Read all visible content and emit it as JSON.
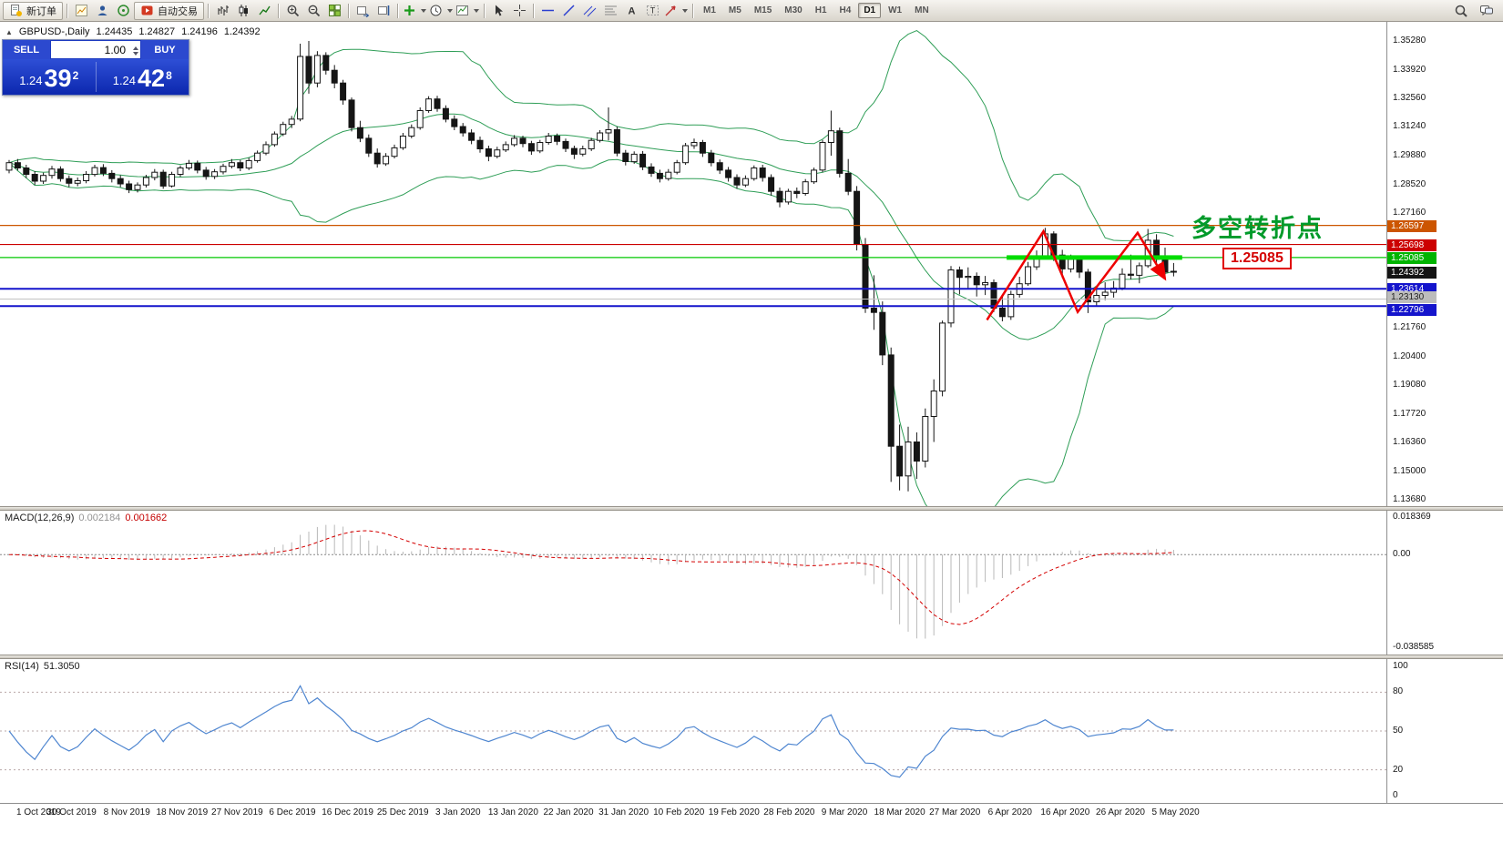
{
  "toolbar": {
    "new_order_label": "新订单",
    "autotrading_label": "自动交易",
    "timeframes": [
      "M1",
      "M5",
      "M15",
      "M30",
      "H1",
      "H4",
      "D1",
      "W1",
      "MN"
    ],
    "active_timeframe": "D1"
  },
  "chart_header": {
    "symbol": "GBPUSD-,Daily",
    "open": "1.24435",
    "high": "1.24827",
    "low": "1.24196",
    "close": "1.24392"
  },
  "trade_panel": {
    "sell_label": "SELL",
    "buy_label": "BUY",
    "volume": "1.00",
    "sell_price_prefix": "1.24",
    "sell_price_big": "39",
    "sell_price_sup": "2",
    "buy_price_prefix": "1.24",
    "buy_price_big": "42",
    "buy_price_sup": "8"
  },
  "annotations": {
    "turning_point_text": "多空转折点",
    "price_flag": "1.25085"
  },
  "chart_data": {
    "type": "candlestick",
    "symbol": "GBPUSD",
    "period": "Daily",
    "ylim": [
      1.1368,
      1.3528
    ],
    "y_ticks": [
      "1.35280",
      "1.33920",
      "1.32560",
      "1.31240",
      "1.29880",
      "1.28520",
      "1.27160",
      "1.21760",
      "1.20400",
      "1.19080",
      "1.17720",
      "1.16360",
      "1.15000",
      "1.13680"
    ],
    "x_labels": [
      "1 Oct 2019",
      "30 Oct 2019",
      "8 Nov 2019",
      "18 Nov 2019",
      "27 Nov 2019",
      "6 Dec 2019",
      "16 Dec 2019",
      "25 Dec 2019",
      "3 Jan 2020",
      "13 Jan 2020",
      "22 Jan 2020",
      "31 Jan 2020",
      "10 Feb 2020",
      "19 Feb 2020",
      "28 Feb 2020",
      "9 Mar 2020",
      "18 Mar 2020",
      "27 Mar 2020",
      "6 Apr 2020",
      "16 Apr 2020",
      "26 Apr 2020",
      "5 May 2020"
    ],
    "bollinger": {
      "period": 20,
      "deviation": 2,
      "color": "#2f9e57"
    },
    "candles": [
      [
        1.292,
        1.2968,
        1.2905,
        1.2955
      ],
      [
        1.2955,
        1.2972,
        1.2918,
        1.293
      ],
      [
        1.293,
        1.2945,
        1.2882,
        1.29
      ],
      [
        1.29,
        1.2915,
        1.285,
        1.2868
      ],
      [
        1.2868,
        1.2908,
        1.2855,
        1.2895
      ],
      [
        1.2895,
        1.294,
        1.288,
        1.2925
      ],
      [
        1.2925,
        1.2938,
        1.2866,
        1.288
      ],
      [
        1.288,
        1.2895,
        1.284,
        1.2858
      ],
      [
        1.2858,
        1.2885,
        1.2844,
        1.287
      ],
      [
        1.287,
        1.2915,
        1.2858,
        1.29
      ],
      [
        1.29,
        1.2945,
        1.289,
        1.2932
      ],
      [
        1.2932,
        1.2948,
        1.2892,
        1.2905
      ],
      [
        1.2905,
        1.292,
        1.2862,
        1.288
      ],
      [
        1.288,
        1.2896,
        1.284,
        1.2855
      ],
      [
        1.2855,
        1.287,
        1.2812,
        1.2828
      ],
      [
        1.2828,
        1.2862,
        1.2815,
        1.285
      ],
      [
        1.285,
        1.2898,
        1.2838,
        1.2885
      ],
      [
        1.2885,
        1.2925,
        1.2872,
        1.291
      ],
      [
        1.291,
        1.2922,
        1.2832,
        1.2845
      ],
      [
        1.2845,
        1.2912,
        1.2838,
        1.29
      ],
      [
        1.29,
        1.2942,
        1.2888,
        1.293
      ],
      [
        1.293,
        1.2968,
        1.292,
        1.2952
      ],
      [
        1.2952,
        1.2965,
        1.2905,
        1.292
      ],
      [
        1.292,
        1.2935,
        1.2875,
        1.289
      ],
      [
        1.289,
        1.2925,
        1.2878,
        1.2912
      ],
      [
        1.2912,
        1.295,
        1.29,
        1.2938
      ],
      [
        1.2938,
        1.2972,
        1.2928,
        1.2955
      ],
      [
        1.2955,
        1.2968,
        1.2915,
        1.293
      ],
      [
        1.293,
        1.2978,
        1.292,
        1.2965
      ],
      [
        1.2965,
        1.3012,
        1.2955,
        1.3
      ],
      [
        1.3,
        1.3055,
        1.299,
        1.304
      ],
      [
        1.304,
        1.3102,
        1.303,
        1.309
      ],
      [
        1.309,
        1.3148,
        1.308,
        1.3135
      ],
      [
        1.3135,
        1.3175,
        1.3118,
        1.316
      ],
      [
        1.316,
        1.3515,
        1.315,
        1.3455
      ],
      [
        1.3455,
        1.3528,
        1.328,
        1.333
      ],
      [
        1.333,
        1.348,
        1.331,
        1.346
      ],
      [
        1.346,
        1.3475,
        1.337,
        1.339
      ],
      [
        1.339,
        1.3415,
        1.3305,
        1.333
      ],
      [
        1.333,
        1.3345,
        1.3228,
        1.325
      ],
      [
        1.325,
        1.3262,
        1.3102,
        1.312
      ],
      [
        1.312,
        1.3152,
        1.3052,
        1.307
      ],
      [
        1.307,
        1.3088,
        1.2982,
        1.3
      ],
      [
        1.3,
        1.3022,
        1.2932,
        1.295
      ],
      [
        1.295,
        1.3,
        1.294,
        1.2985
      ],
      [
        1.2985,
        1.304,
        1.2975,
        1.3025
      ],
      [
        1.3025,
        1.3095,
        1.3015,
        1.308
      ],
      [
        1.308,
        1.3135,
        1.307,
        1.312
      ],
      [
        1.312,
        1.3215,
        1.311,
        1.32
      ],
      [
        1.32,
        1.3268,
        1.319,
        1.3255
      ],
      [
        1.3255,
        1.327,
        1.3195,
        1.321
      ],
      [
        1.321,
        1.3225,
        1.3145,
        1.316
      ],
      [
        1.316,
        1.3178,
        1.3108,
        1.3125
      ],
      [
        1.3125,
        1.3142,
        1.3078,
        1.3095
      ],
      [
        1.3095,
        1.3112,
        1.3042,
        1.306
      ],
      [
        1.306,
        1.3078,
        1.3002,
        1.302
      ],
      [
        1.302,
        1.3035,
        1.2962,
        1.2985
      ],
      [
        1.2985,
        1.303,
        1.2975,
        1.3015
      ],
      [
        1.3015,
        1.3055,
        1.3005,
        1.304
      ],
      [
        1.304,
        1.3085,
        1.303,
        1.307
      ],
      [
        1.307,
        1.3082,
        1.3028,
        1.3045
      ],
      [
        1.3045,
        1.3058,
        1.2992,
        1.301
      ],
      [
        1.301,
        1.3062,
        1.3,
        1.305
      ],
      [
        1.305,
        1.3095,
        1.304,
        1.308
      ],
      [
        1.308,
        1.3092,
        1.3038,
        1.3055
      ],
      [
        1.3055,
        1.3068,
        1.3005,
        1.3022
      ],
      [
        1.3022,
        1.3035,
        1.2972,
        1.2995
      ],
      [
        1.2995,
        1.3035,
        1.2985,
        1.302
      ],
      [
        1.302,
        1.3072,
        1.301,
        1.306
      ],
      [
        1.306,
        1.3108,
        1.305,
        1.3095
      ],
      [
        1.3095,
        1.3215,
        1.306,
        1.311
      ],
      [
        1.311,
        1.3125,
        1.2985,
        1.3
      ],
      [
        1.3,
        1.3015,
        1.2942,
        1.296
      ],
      [
        1.296,
        1.3008,
        1.295,
        1.2995
      ],
      [
        1.2995,
        1.301,
        1.292,
        1.2935
      ],
      [
        1.2935,
        1.2952,
        1.2888,
        1.2905
      ],
      [
        1.2905,
        1.2922,
        1.2862,
        1.288
      ],
      [
        1.288,
        1.2925,
        1.287,
        1.291
      ],
      [
        1.291,
        1.2968,
        1.29,
        1.2955
      ],
      [
        1.2955,
        1.3048,
        1.2945,
        1.3035
      ],
      [
        1.3035,
        1.3068,
        1.302,
        1.305
      ],
      [
        1.305,
        1.3062,
        1.2982,
        1.3
      ],
      [
        1.3,
        1.3015,
        1.2938,
        1.2955
      ],
      [
        1.2955,
        1.297,
        1.2902,
        1.292
      ],
      [
        1.292,
        1.2935,
        1.2866,
        1.2885
      ],
      [
        1.2885,
        1.29,
        1.2832,
        1.285
      ],
      [
        1.285,
        1.2895,
        1.284,
        1.288
      ],
      [
        1.288,
        1.2942,
        1.287,
        1.293
      ],
      [
        1.293,
        1.2945,
        1.2866,
        1.2885
      ],
      [
        1.2885,
        1.29,
        1.28,
        1.282
      ],
      [
        1.282,
        1.2838,
        1.2745,
        1.277
      ],
      [
        1.277,
        1.2832,
        1.2758,
        1.282
      ],
      [
        1.282,
        1.2838,
        1.2788,
        1.281
      ],
      [
        1.281,
        1.2878,
        1.28,
        1.2865
      ],
      [
        1.2865,
        1.2932,
        1.2855,
        1.292
      ],
      [
        1.292,
        1.3062,
        1.291,
        1.305
      ],
      [
        1.305,
        1.32,
        1.2988,
        1.3105
      ],
      [
        1.3105,
        1.312,
        1.2885,
        1.2905
      ],
      [
        1.2905,
        1.2972,
        1.2802,
        1.282
      ],
      [
        1.282,
        1.2845,
        1.2542,
        1.257
      ],
      [
        1.257,
        1.26,
        1.2248,
        1.227
      ],
      [
        1.227,
        1.2425,
        1.2168,
        1.225
      ],
      [
        1.225,
        1.2302,
        1.2002,
        1.205
      ],
      [
        1.205,
        1.2085,
        1.1452,
        1.162
      ],
      [
        1.162,
        1.1722,
        1.1412,
        1.148
      ],
      [
        1.148,
        1.1712,
        1.1408,
        1.164
      ],
      [
        1.164,
        1.1685,
        1.1466,
        1.155
      ],
      [
        1.155,
        1.1798,
        1.152,
        1.176
      ],
      [
        1.176,
        1.1935,
        1.164,
        1.188
      ],
      [
        1.188,
        1.2212,
        1.1855,
        1.22
      ],
      [
        1.22,
        1.2468,
        1.218,
        1.245
      ],
      [
        1.245,
        1.2466,
        1.2335,
        1.2415
      ],
      [
        1.2415,
        1.2462,
        1.236,
        1.242
      ],
      [
        1.242,
        1.2438,
        1.2325,
        1.238
      ],
      [
        1.238,
        1.2422,
        1.2332,
        1.239
      ],
      [
        1.239,
        1.2405,
        1.2252,
        1.227
      ],
      [
        1.227,
        1.2322,
        1.2208,
        1.223
      ],
      [
        1.223,
        1.2352,
        1.2215,
        1.2335
      ],
      [
        1.2335,
        1.2418,
        1.232,
        1.2385
      ],
      [
        1.2385,
        1.2488,
        1.2375,
        1.2465
      ],
      [
        1.2465,
        1.2542,
        1.245,
        1.2515
      ],
      [
        1.2515,
        1.2648,
        1.2505,
        1.262
      ],
      [
        1.262,
        1.2632,
        1.2492,
        1.252
      ],
      [
        1.252,
        1.2545,
        1.2412,
        1.2455
      ],
      [
        1.2455,
        1.2522,
        1.2438,
        1.25
      ],
      [
        1.25,
        1.2518,
        1.2412,
        1.244
      ],
      [
        1.244,
        1.2455,
        1.2247,
        1.23
      ],
      [
        1.23,
        1.2362,
        1.2278,
        1.233
      ],
      [
        1.233,
        1.2392,
        1.2308,
        1.2345
      ],
      [
        1.2345,
        1.2398,
        1.232,
        1.2365
      ],
      [
        1.2365,
        1.2458,
        1.2355,
        1.243
      ],
      [
        1.243,
        1.2522,
        1.2405,
        1.2425
      ],
      [
        1.2425,
        1.2485,
        1.2387,
        1.247
      ],
      [
        1.247,
        1.2643,
        1.246,
        1.259
      ],
      [
        1.259,
        1.2618,
        1.2475,
        1.25
      ],
      [
        1.25,
        1.2555,
        1.2405,
        1.244
      ],
      [
        1.24435,
        1.24827,
        1.24196,
        1.24392
      ]
    ],
    "hlines": [
      {
        "price": 1.26597,
        "color": "#cc5500",
        "width": 1.2
      },
      {
        "price": 1.25698,
        "color": "#cc0000",
        "width": 1.2
      },
      {
        "price": 1.25085,
        "color": "#00c800",
        "width": 1.2
      },
      {
        "price": 1.23614,
        "color": "#1414cc",
        "width": 2
      },
      {
        "price": 1.2313,
        "color": "#c2c2c2",
        "width": 1
      },
      {
        "price": 1.22796,
        "color": "#1414cc",
        "width": 2
      }
    ],
    "price_badges": [
      {
        "text": "1.26597",
        "bg": "#cc5500",
        "fg": "#ffffff",
        "price": 1.26597
      },
      {
        "text": "1.25698",
        "bg": "#cc0000",
        "fg": "#ffffff",
        "price": 1.25698
      },
      {
        "text": "1.25085",
        "bg": "#00b400",
        "fg": "#ffffff",
        "price": 1.25085
      },
      {
        "text": "1.24392",
        "bg": "#141414",
        "fg": "#ffffff",
        "price": 1.24392
      },
      {
        "text": "1.23614",
        "bg": "#1414cc",
        "fg": "#ffffff",
        "price": 1.23614
      },
      {
        "text": "1.23130",
        "bg": "#bcbcbc",
        "f g": "#222222",
        "fg": "#222222",
        "price": 1.2313,
        "dy": -3
      },
      {
        "text": "1.22796",
        "bg": "#1414cc",
        "fg": "#ffffff",
        "price": 1.22796,
        "dy": 4
      }
    ],
    "green_segment": {
      "price": 1.25085,
      "from_index": 116.5,
      "to_index": 137,
      "color": "#00dd00",
      "thickness": 5
    },
    "zigzag": {
      "color": "#ee0000",
      "width": 2.5,
      "points": [
        [
          114.2,
          1.2215
        ],
        [
          120.8,
          1.2632
        ],
        [
          124.8,
          1.2252
        ],
        [
          131.8,
          1.2625
        ],
        [
          135.0,
          1.2408
        ]
      ]
    },
    "indicators": {
      "macd": {
        "label": "MACD(12,26,9)",
        "value1": "0.002184",
        "value2": "0.001662",
        "fast": 12,
        "slow": 26,
        "signal": 9,
        "axis_labels": [
          "0.018369",
          "0.00",
          "-0.038585"
        ],
        "histogram_color": "#b8b8b8",
        "signal_color": "#d40000"
      },
      "rsi": {
        "label": "RSI(14)",
        "value": "51.3050",
        "period": 14,
        "levels": [
          80,
          50,
          20
        ],
        "axis_labels": [
          "100",
          "80",
          "50",
          "20",
          "0"
        ],
        "color": "#4f86d0"
      }
    }
  }
}
